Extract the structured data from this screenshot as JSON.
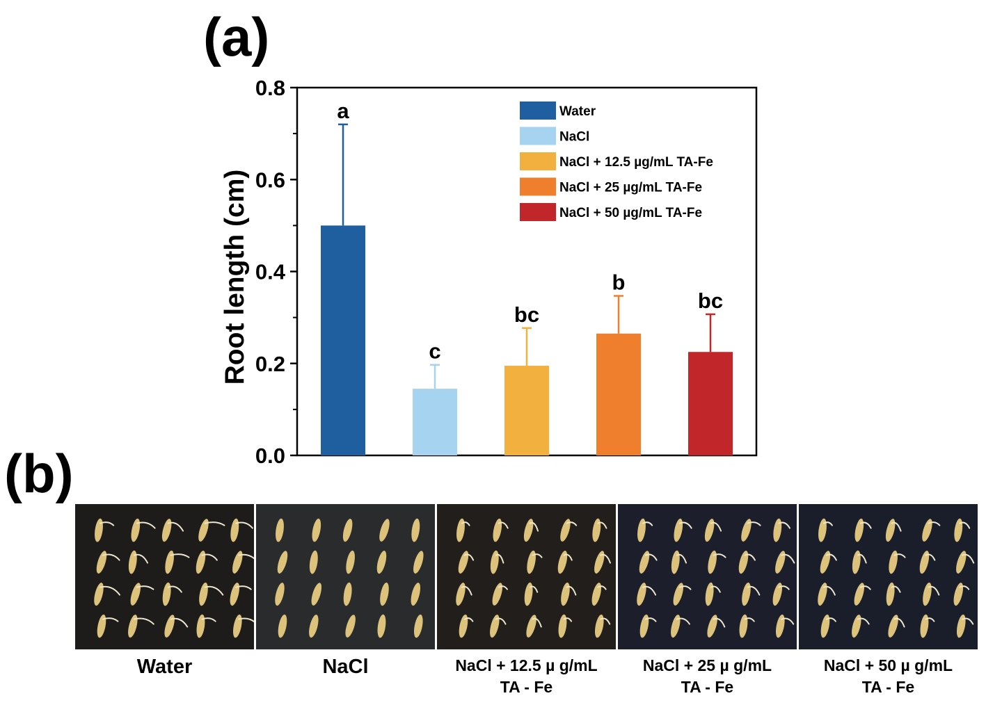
{
  "panel_a_label": "(a)",
  "panel_b_label": "(b)",
  "chart_data": {
    "type": "bar",
    "title": "",
    "xlabel": "",
    "ylabel": "Root length (cm)",
    "ylim": [
      0.0,
      0.8
    ],
    "yticks": [
      "0.0",
      "0.2",
      "0.4",
      "0.6",
      "0.8"
    ],
    "ytick_values": [
      0.0,
      0.2,
      0.4,
      0.6,
      0.8
    ],
    "grid": false,
    "legend_position": "top-right",
    "categories": [
      "Water",
      "NaCl",
      "NaCl + 12.5 µg/mL TA-Fe",
      "NaCl + 25 µg/mL TA-Fe",
      "NaCl + 50 µg/mL TA-Fe"
    ],
    "values": [
      0.5,
      0.145,
      0.195,
      0.265,
      0.225
    ],
    "errors": [
      0.22,
      0.052,
      0.082,
      0.082,
      0.082
    ],
    "significance": [
      "a",
      "c",
      "bc",
      "b",
      "bc"
    ],
    "colors": [
      "#1f5fa0",
      "#a6d3f0",
      "#f2b03e",
      "#ef7f2c",
      "#c0262a"
    ],
    "legend": [
      "Water",
      "NaCl",
      "NaCl + 12.5 µg/mL TA-Fe",
      "NaCl + 25 µg/mL TA-Fe",
      "NaCl + 50 µg/mL TA-Fe"
    ]
  },
  "panel_b": {
    "captions": [
      {
        "line1": "Water",
        "line2": ""
      },
      {
        "line1": "NaCl",
        "line2": ""
      },
      {
        "line1": "NaCl + 12.5 µ g/mL",
        "line2": "TA - Fe"
      },
      {
        "line1": "NaCl + 25 µ g/mL",
        "line2": "TA - Fe"
      },
      {
        "line1": "NaCl + 50 µ g/mL",
        "line2": "TA - Fe"
      }
    ],
    "photo_backgrounds": [
      "#1d1c1b",
      "#2a2b2c",
      "#221e1b",
      "#1c1f2b",
      "#1a1e2a"
    ],
    "seed_color": "#dcc27a",
    "root_color": "#ece6cf",
    "root_levels": [
      1.0,
      0.0,
      0.35,
      0.55,
      0.45
    ]
  }
}
